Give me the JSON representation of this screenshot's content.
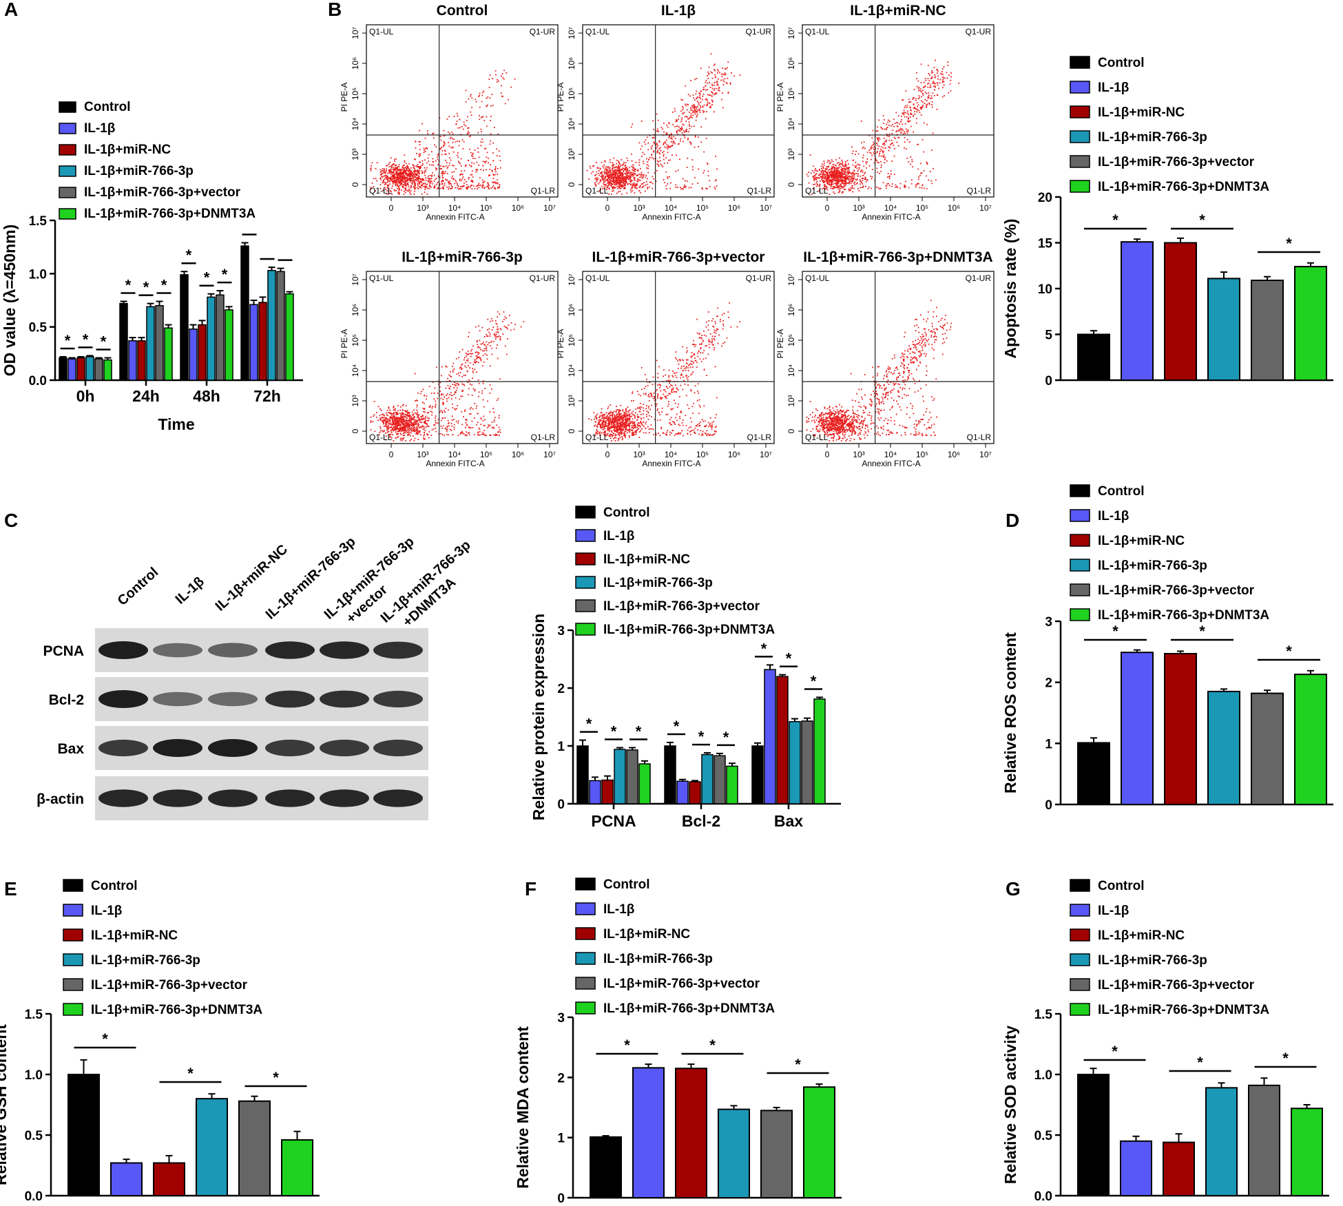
{
  "colors": {
    "Control": "#000000",
    "IL-1β": "#5858f6",
    "IL-1β+miR-NC": "#a00000",
    "IL-1β+miR-766-3p": "#1b98b6",
    "IL-1β+miR-766-3p+vector": "#666666",
    "IL-1β+miR-766-3p+DNMT3A": "#1fd21f",
    "dots": "#e81e1e"
  },
  "panel_labels": {
    "A": "A",
    "B": "B",
    "C": "C",
    "D": "D",
    "E": "E",
    "F": "F",
    "G": "G"
  },
  "groups": [
    "Control",
    "IL-1β",
    "IL-1β+miR-NC",
    "IL-1β+miR-766-3p",
    "IL-1β+miR-766-3p+vector",
    "IL-1β+miR-766-3p+DNMT3A"
  ],
  "flow": {
    "titles": [
      "Control",
      "IL-1β",
      "IL-1β+miR-NC",
      "IL-1β+miR-766-3p",
      "IL-1β+miR-766-3p+vector",
      "IL-1β+miR-766-3p+DNMT3A"
    ],
    "quadrants": [
      "Q1-UL",
      "Q1-UR",
      "Q1-LL",
      "Q1-LR"
    ],
    "xlabel": "Annexin FITC-A",
    "ylabel": "PI PE-A",
    "xticks": [
      "0",
      "10³",
      "10⁴",
      "10⁵",
      "10⁶",
      "10⁷"
    ],
    "yticks": [
      "0",
      "10³",
      "10⁴",
      "10⁵",
      "10⁶",
      "10⁷"
    ]
  },
  "blot": {
    "lanes": [
      "Control",
      "IL-1β",
      "IL-1β+miR-NC",
      "IL-1β+miR-766-3p",
      "IL-1β+miR-766-3p\n+vector",
      "IL-1β+miR-766-3p\n+DNMT3A"
    ],
    "rows": [
      "PCNA",
      "Bcl-2",
      "Bax",
      "β-actin"
    ],
    "intensity": [
      [
        1.0,
        0.55,
        0.6,
        0.95,
        0.95,
        0.9
      ],
      [
        1.0,
        0.55,
        0.55,
        0.9,
        0.9,
        0.85
      ],
      [
        0.85,
        1.0,
        1.0,
        0.85,
        0.85,
        0.85
      ],
      [
        0.95,
        0.95,
        0.95,
        0.95,
        0.95,
        0.95
      ]
    ]
  },
  "chart_data": [
    {
      "id": "A",
      "type": "bar",
      "xlabel": "Time",
      "ylabel": "OD value (λ=450nm)",
      "ylim": [
        0,
        1.5
      ],
      "yticks": [
        "0.0",
        "0.5",
        "1.0",
        "1.5"
      ],
      "categories": [
        "0h",
        "24h",
        "48h",
        "72h"
      ],
      "series": [
        {
          "name": "Control",
          "values": [
            0.21,
            0.72,
            0.99,
            1.26
          ],
          "errors": [
            0.01,
            0.02,
            0.03,
            0.03
          ]
        },
        {
          "name": "IL-1β",
          "values": [
            0.2,
            0.37,
            0.48,
            0.71
          ],
          "errors": [
            0.01,
            0.03,
            0.04,
            0.04
          ]
        },
        {
          "name": "IL-1β+miR-NC",
          "values": [
            0.21,
            0.37,
            0.52,
            0.73
          ],
          "errors": [
            0.01,
            0.03,
            0.04,
            0.05
          ]
        },
        {
          "name": "IL-1β+miR-766-3p",
          "values": [
            0.22,
            0.69,
            0.78,
            1.03
          ],
          "errors": [
            0.01,
            0.03,
            0.03,
            0.03
          ]
        },
        {
          "name": "IL-1β+miR-766-3p+vector",
          "values": [
            0.2,
            0.7,
            0.8,
            1.02
          ],
          "errors": [
            0.01,
            0.04,
            0.04,
            0.03
          ]
        },
        {
          "name": "IL-1β+miR-766-3p+DNMT3A",
          "values": [
            0.19,
            0.49,
            0.66,
            0.81
          ],
          "errors": [
            0.02,
            0.03,
            0.03,
            0.02
          ]
        }
      ],
      "stars": [
        "*",
        "*",
        "*",
        "*",
        "*",
        "*",
        "*",
        "*",
        "*"
      ]
    },
    {
      "id": "B",
      "type": "bar",
      "xlabel": "",
      "ylabel": "Apoptosis rate (%)",
      "ylim": [
        0,
        20
      ],
      "yticks": [
        "0",
        "5",
        "10",
        "15",
        "20"
      ],
      "categories": [
        "Control",
        "IL-1β",
        "IL-1β+miR-NC",
        "IL-1β+miR-766-3p",
        "IL-1β+miR-766-3p+vector",
        "IL-1β+miR-766-3p+DNMT3A"
      ],
      "values": [
        5.0,
        15.1,
        15.0,
        11.1,
        10.9,
        12.4
      ],
      "errors": [
        0.4,
        0.3,
        0.5,
        0.7,
        0.4,
        0.4
      ],
      "stars": [
        "*",
        "*",
        "*"
      ]
    },
    {
      "id": "C",
      "type": "bar",
      "xlabel": "",
      "ylabel": "Relative protein expression",
      "ylim": [
        0,
        3
      ],
      "yticks": [
        "0",
        "1",
        "2",
        "3"
      ],
      "categories": [
        "PCNA",
        "Bcl-2",
        "Bax"
      ],
      "series": [
        {
          "name": "Control",
          "values": [
            1.0,
            1.0,
            1.0
          ],
          "errors": [
            0.1,
            0.06,
            0.05
          ]
        },
        {
          "name": "IL-1β",
          "values": [
            0.4,
            0.39,
            2.32
          ],
          "errors": [
            0.06,
            0.03,
            0.08
          ]
        },
        {
          "name": "IL-1β+miR-NC",
          "values": [
            0.41,
            0.38,
            2.2
          ],
          "errors": [
            0.07,
            0.02,
            0.03
          ]
        },
        {
          "name": "IL-1β+miR-766-3p",
          "values": [
            0.94,
            0.85,
            1.42
          ],
          "errors": [
            0.03,
            0.03,
            0.05
          ]
        },
        {
          "name": "IL-1β+miR-766-3p+vector",
          "values": [
            0.93,
            0.83,
            1.43
          ],
          "errors": [
            0.04,
            0.04,
            0.05
          ]
        },
        {
          "name": "IL-1β+miR-766-3p+DNMT3A",
          "values": [
            0.69,
            0.65,
            1.81
          ],
          "errors": [
            0.05,
            0.05,
            0.03
          ]
        }
      ],
      "stars": [
        "*",
        "*",
        "*",
        "*",
        "*",
        "*",
        "*",
        "*",
        "*"
      ]
    },
    {
      "id": "D",
      "type": "bar",
      "xlabel": "",
      "ylabel": "Relative ROS content",
      "ylim": [
        0,
        3
      ],
      "yticks": [
        "0",
        "1",
        "2",
        "3"
      ],
      "categories": [
        "Control",
        "IL-1β",
        "IL-1β+miR-NC",
        "IL-1β+miR-766-3p",
        "IL-1β+miR-766-3p+vector",
        "IL-1β+miR-766-3p+DNMT3A"
      ],
      "values": [
        1.01,
        2.49,
        2.47,
        1.85,
        1.82,
        2.13
      ],
      "errors": [
        0.08,
        0.04,
        0.04,
        0.04,
        0.05,
        0.06
      ],
      "stars": [
        "*",
        "*",
        "*"
      ]
    },
    {
      "id": "E",
      "type": "bar",
      "xlabel": "",
      "ylabel": "Relative GSH content",
      "ylim": [
        0,
        1.5
      ],
      "yticks": [
        "0.0",
        "0.5",
        "1.0",
        "1.5"
      ],
      "categories": [
        "Control",
        "IL-1β",
        "IL-1β+miR-NC",
        "IL-1β+miR-766-3p",
        "IL-1β+miR-766-3p+vector",
        "IL-1β+miR-766-3p+DNMT3A"
      ],
      "values": [
        1.0,
        0.27,
        0.27,
        0.8,
        0.78,
        0.46
      ],
      "errors": [
        0.12,
        0.03,
        0.06,
        0.04,
        0.04,
        0.07
      ],
      "stars": [
        "*",
        "*",
        "*"
      ]
    },
    {
      "id": "F",
      "type": "bar",
      "xlabel": "",
      "ylabel": "Relative MDA content",
      "ylim": [
        0,
        3
      ],
      "yticks": [
        "0",
        "1",
        "2",
        "3"
      ],
      "categories": [
        "Control",
        "IL-1β",
        "IL-1β+miR-NC",
        "IL-1β+miR-766-3p",
        "IL-1β+miR-766-3p+vector",
        "IL-1β+miR-766-3p+DNMT3A"
      ],
      "values": [
        1.01,
        2.16,
        2.15,
        1.47,
        1.45,
        1.84
      ],
      "errors": [
        0.02,
        0.06,
        0.07,
        0.06,
        0.05,
        0.05
      ],
      "stars": [
        "*",
        "*",
        "*"
      ]
    },
    {
      "id": "G",
      "type": "bar",
      "xlabel": "",
      "ylabel": "Relative SOD activity",
      "ylim": [
        0,
        1.5
      ],
      "yticks": [
        "0.0",
        "0.5",
        "1.0",
        "1.5"
      ],
      "categories": [
        "Control",
        "IL-1β",
        "IL-1β+miR-NC",
        "IL-1β+miR-766-3p",
        "IL-1β+miR-766-3p+vector",
        "IL-1β+miR-766-3p+DNMT3A"
      ],
      "values": [
        1.0,
        0.45,
        0.44,
        0.89,
        0.91,
        0.72
      ],
      "errors": [
        0.05,
        0.04,
        0.07,
        0.04,
        0.06,
        0.03
      ],
      "stars": [
        "*",
        "*",
        "*"
      ]
    }
  ]
}
